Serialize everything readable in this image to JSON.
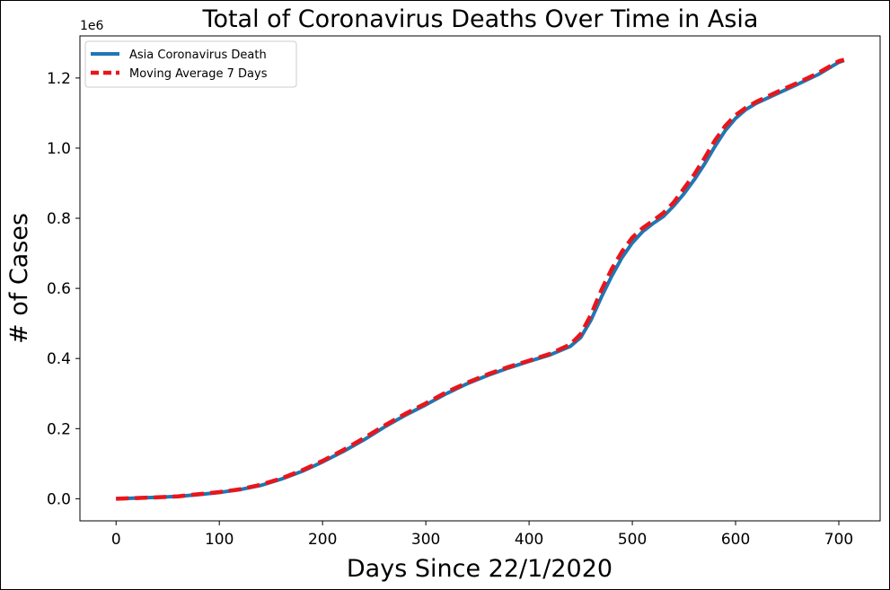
{
  "chart_data": {
    "type": "line",
    "title": "Total of Coronavirus Deaths Over Time in Asia",
    "xlabel": "Days Since 22/1/2020",
    "ylabel": "# of Cases",
    "y_offset_label": "1e6",
    "xlim": [
      -35,
      740
    ],
    "ylim": [
      -0.063,
      1.32
    ],
    "x_ticks": [
      0,
      100,
      200,
      300,
      400,
      500,
      600,
      700
    ],
    "x_tick_labels": [
      "0",
      "100",
      "200",
      "300",
      "400",
      "500",
      "600",
      "700"
    ],
    "y_ticks": [
      0.0,
      0.2,
      0.4,
      0.6,
      0.8,
      1.0,
      1.2
    ],
    "y_tick_labels": [
      "0.0",
      "0.2",
      "0.4",
      "0.6",
      "0.8",
      "1.0",
      "1.2"
    ],
    "legend_position": "upper-left",
    "grid": false,
    "series": [
      {
        "name": "Asia Coronavirus Death",
        "color": "#1f77b4",
        "style": "solid",
        "x": [
          0,
          20,
          40,
          60,
          80,
          100,
          120,
          140,
          160,
          180,
          200,
          220,
          240,
          260,
          280,
          300,
          320,
          340,
          360,
          380,
          400,
          420,
          440,
          450,
          460,
          470,
          480,
          490,
          500,
          510,
          520,
          530,
          540,
          550,
          560,
          570,
          580,
          590,
          600,
          610,
          620,
          640,
          660,
          680,
          700,
          705
        ],
        "y": [
          0.0,
          0.002,
          0.004,
          0.007,
          0.012,
          0.018,
          0.026,
          0.038,
          0.056,
          0.078,
          0.105,
          0.135,
          0.168,
          0.205,
          0.238,
          0.268,
          0.3,
          0.328,
          0.352,
          0.373,
          0.392,
          0.41,
          0.435,
          0.46,
          0.51,
          0.575,
          0.635,
          0.688,
          0.73,
          0.762,
          0.785,
          0.805,
          0.835,
          0.87,
          0.91,
          0.955,
          1.005,
          1.05,
          1.085,
          1.11,
          1.128,
          1.155,
          1.182,
          1.21,
          1.245,
          1.25
        ]
      },
      {
        "name": "Moving Average 7 Days",
        "color": "#e8161b",
        "style": "dashed",
        "x": [
          0,
          20,
          40,
          60,
          80,
          100,
          120,
          140,
          160,
          180,
          200,
          220,
          240,
          260,
          280,
          300,
          320,
          340,
          360,
          380,
          400,
          420,
          440,
          450,
          460,
          470,
          480,
          490,
          500,
          510,
          520,
          530,
          540,
          550,
          560,
          570,
          580,
          590,
          600,
          610,
          620,
          640,
          660,
          680,
          700,
          705
        ],
        "y": [
          0.0,
          0.002,
          0.004,
          0.007,
          0.013,
          0.019,
          0.027,
          0.04,
          0.058,
          0.081,
          0.108,
          0.139,
          0.173,
          0.209,
          0.242,
          0.272,
          0.304,
          0.331,
          0.355,
          0.376,
          0.394,
          0.413,
          0.44,
          0.47,
          0.525,
          0.595,
          0.655,
          0.705,
          0.745,
          0.772,
          0.793,
          0.815,
          0.845,
          0.885,
          0.925,
          0.972,
          1.022,
          1.063,
          1.094,
          1.115,
          1.132,
          1.16,
          1.186,
          1.214,
          1.248,
          1.252
        ]
      }
    ]
  }
}
